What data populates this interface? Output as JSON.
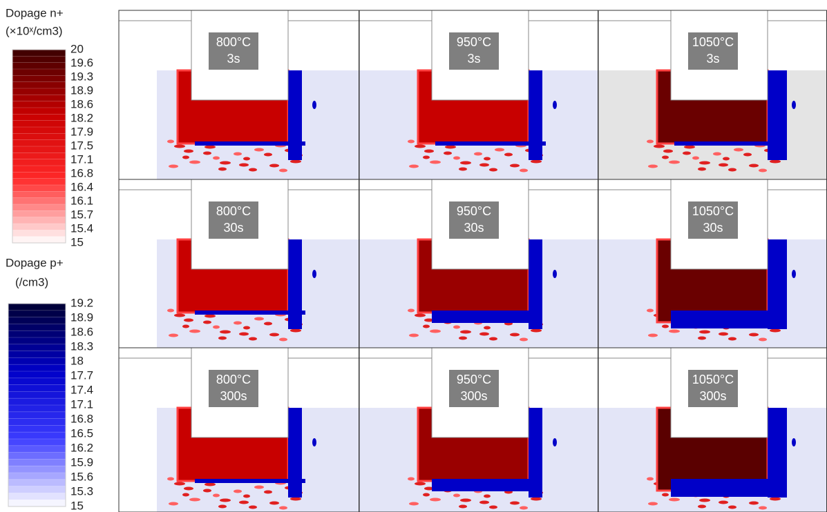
{
  "legends": [
    {
      "title": [
        "Dopage n+",
        "(×10ˣ/cm3)"
      ],
      "ticks": [
        20,
        19.6,
        19.3,
        18.9,
        18.6,
        18.2,
        17.9,
        17.5,
        17.1,
        16.8,
        16.4,
        16.1,
        15.7,
        15.4,
        15
      ]
    },
    {
      "title": [
        "Dopage p+",
        "(/cm3)"
      ],
      "ticks": [
        19.2,
        18.9,
        18.6,
        18.3,
        18,
        17.7,
        17.4,
        17.1,
        16.8,
        16.5,
        16.2,
        15.9,
        15.6,
        15.3,
        15
      ]
    }
  ],
  "panels": [
    {
      "temperature": "800°C",
      "time": "3s"
    },
    {
      "temperature": "950°C",
      "time": "3s"
    },
    {
      "temperature": "1050°C",
      "time": "3s"
    },
    {
      "temperature": "800°C",
      "time": "30s"
    },
    {
      "temperature": "950°C",
      "time": "30s"
    },
    {
      "temperature": "1050°C",
      "time": "30s"
    },
    {
      "temperature": "800°C",
      "time": "300s"
    },
    {
      "temperature": "950°C",
      "time": "300s"
    },
    {
      "temperature": "1050°C",
      "time": "300s"
    }
  ]
}
